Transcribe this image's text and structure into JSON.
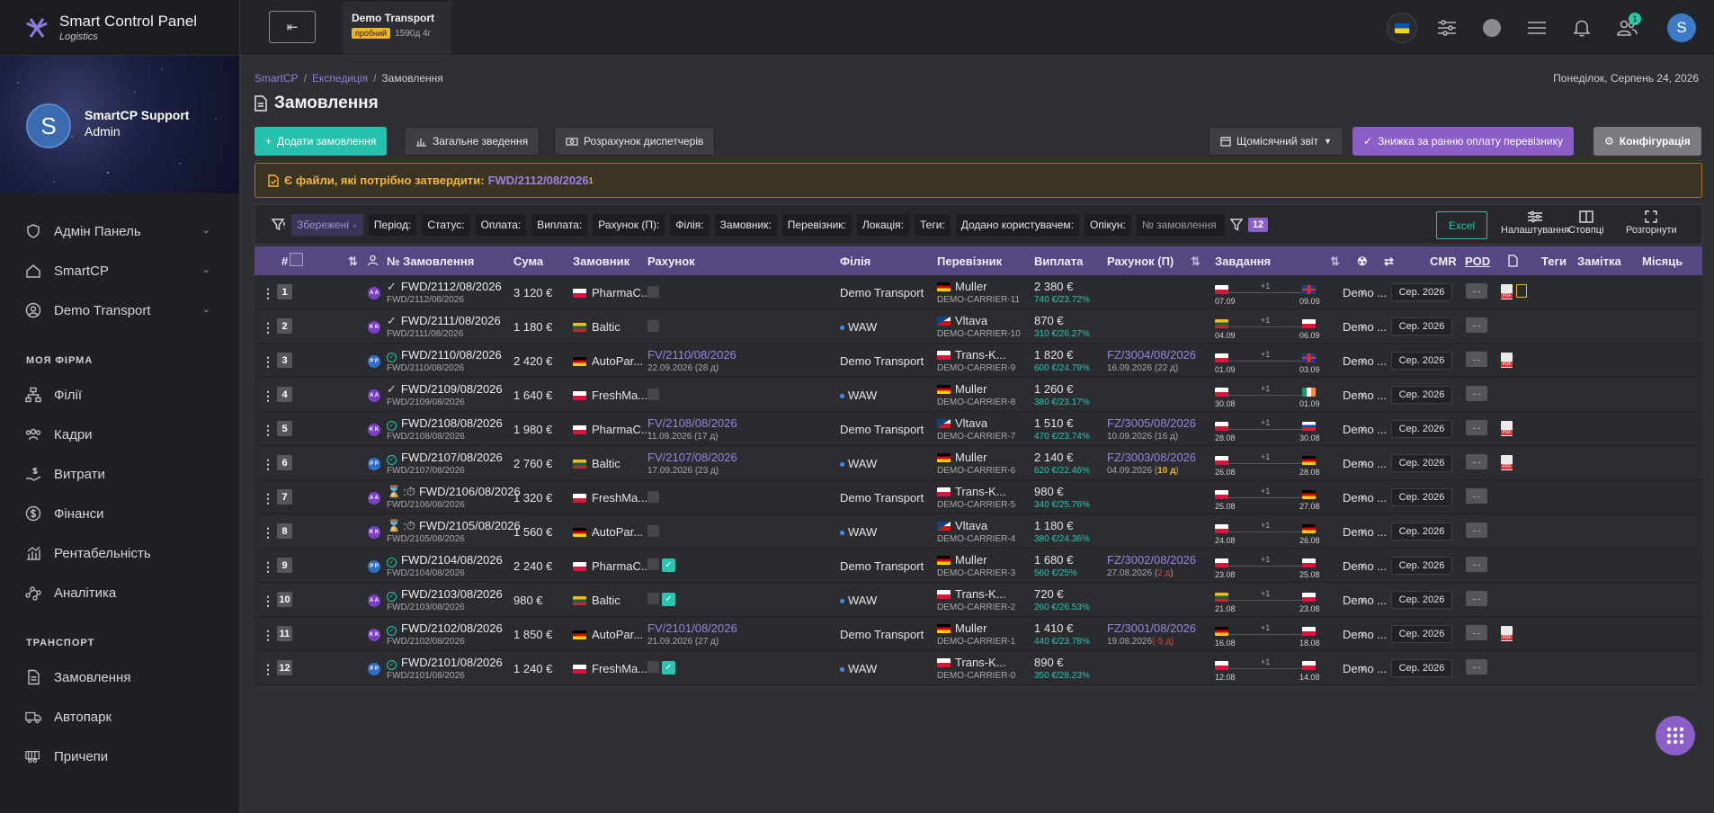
{
  "brand": {
    "title": "Smart Control Panel",
    "subtitle": "Logistics"
  },
  "profile": {
    "initial": "S",
    "name": "SmartCP Support",
    "role": "Admin"
  },
  "nav": {
    "top": [
      {
        "label": "Адмін Панель",
        "icon": "shield-icon"
      },
      {
        "label": "SmartCP",
        "icon": "home-icon"
      },
      {
        "label": "Demo Transport",
        "icon": "user-circle-icon"
      }
    ],
    "section1": "МОЯ ФІРМА",
    "firm": [
      {
        "label": "Філії",
        "icon": "network-icon"
      },
      {
        "label": "Кадри",
        "icon": "people-icon"
      },
      {
        "label": "Витрати",
        "icon": "expenses-icon"
      },
      {
        "label": "Фінанси",
        "icon": "dollar-icon"
      },
      {
        "label": "Рентабельність",
        "icon": "chart-icon"
      },
      {
        "label": "Аналітика",
        "icon": "analytics-icon"
      }
    ],
    "section2": "ТРАНСПОРТ",
    "transport": [
      {
        "label": "Замовлення",
        "icon": "orders-icon"
      },
      {
        "label": "Автопарк",
        "icon": "truck-icon"
      },
      {
        "label": "Причепи",
        "icon": "trailer-icon"
      }
    ]
  },
  "topbar": {
    "company": "Demo Transport",
    "trial": "пробний",
    "days": "1590д 4г",
    "notif_count": "1",
    "user_initial": "S"
  },
  "breadcrumb": {
    "root": "SmartCP",
    "parent": "Експедиція",
    "current": "Замовлення"
  },
  "date": "Понеділок, Серпень 24, 2026",
  "page_title": "Замовлення",
  "buttons": {
    "add": "Додати замовлення",
    "summary": "Загальне зведення",
    "dispatch": "Розрахунок диспетчерів",
    "monthly": "Щомісячний звіт",
    "discount": "Знижка за ранню оплату перевізнику",
    "config": "Конфігурація"
  },
  "alert": {
    "text": "Є файли, які потрібно затвердити:",
    "link": "FWD/2112/08/2026",
    "count": "1"
  },
  "filters": {
    "saved": "Збережені",
    "chips": [
      "Період:",
      "Статус:",
      "Оплата:",
      "Виплата:",
      "Рахунок (П):",
      "Філія:",
      "Замовник:",
      "Перевізник:",
      "Локація:",
      "Теги:",
      "Додано користувачем:",
      "Опікун:"
    ],
    "search_placeholder": "№ замовлення",
    "count": "12",
    "excel": "Excel",
    "settings": "Налаштування",
    "columns": "Стовпці",
    "expand": "Розгорнути"
  },
  "columns": {
    "num": "#",
    "order": "№ Замовлення",
    "sum": "Сума",
    "customer": "Замовник",
    "invoice": "Рахунок",
    "branch": "Філія",
    "carrier": "Перевізник",
    "payout": "Виплата",
    "invoice_p": "Рахунок (П)",
    "tasks": "Завдання",
    "cmr": "CMR",
    "pod": "POD",
    "tags": "Теги",
    "note": "Замітка",
    "month": "Місяць"
  },
  "rows": [
    {
      "n": "1",
      "av": "A A",
      "avc": "#7b3fc4",
      "st": "check",
      "ord": "FWD/2112/08/2026",
      "sum": "3 120 €",
      "cf": "pl",
      "cust": "PharmaC...",
      "inv": "",
      "invd": "",
      "inv_state": "sq",
      "branch": "Demo Transport",
      "bdot": false,
      "crf": "de",
      "carr": "Muller",
      "crs": "DEMO-CARRIER-11",
      "pay": "2 380 €",
      "paym": "740 €/23.72%",
      "invp": "",
      "invpd": "",
      "invpx": "",
      "invpxc": "",
      "f1": "pl",
      "d1": "07.09",
      "f2": "gb",
      "d2": "09.09",
      "pdf": true,
      "doc": true,
      "note": "Demo ...",
      "month": "Сер. 2026"
    },
    {
      "n": "2",
      "av": "K K",
      "avc": "#7b3fc4",
      "st": "check",
      "ord": "FWD/2111/08/2026",
      "sum": "1 180 €",
      "cf": "lt",
      "cust": "Baltic",
      "inv": "",
      "invd": "",
      "inv_state": "sq",
      "branch": "WAW",
      "bdot": true,
      "crf": "cz",
      "carr": "Vltava",
      "crs": "DEMO-CARRIER-10",
      "pay": "870 €",
      "paym": "310 €/26.27%",
      "invp": "",
      "invpd": "",
      "invpx": "",
      "invpxc": "",
      "f1": "lt",
      "d1": "04.09",
      "f2": "pl",
      "d2": "06.09",
      "pdf": false,
      "doc": false,
      "note": "Demo ...",
      "month": "Сер. 2026"
    },
    {
      "n": "3",
      "av": "P P",
      "avc": "#2f6fc7",
      "st": "circle",
      "ord": "FWD/2110/08/2026",
      "sum": "2 420 €",
      "cf": "de",
      "cust": "AutoPar...",
      "inv": "FV/2110/08/2026",
      "invd": "22.09.2026 (28 д)",
      "inv_state": "",
      "branch": "Demo Transport",
      "bdot": false,
      "crf": "pl",
      "carr": "Trans-K...",
      "crs": "DEMO-CARRIER-9",
      "pay": "1 820 €",
      "paym": "600 €/24.79%",
      "invp": "FZ/3004/08/2026",
      "invpd": "16.09.2026 (22 д)",
      "invpx": "",
      "invpxc": "",
      "f1": "pl",
      "d1": "01.09",
      "f2": "gb",
      "d2": "03.09",
      "pdf": true,
      "doc": false,
      "note": "Demo ...",
      "month": "Сер. 2026"
    },
    {
      "n": "4",
      "av": "A A",
      "avc": "#7b3fc4",
      "st": "check",
      "ord": "FWD/2109/08/2026",
      "sum": "1 640 €",
      "cf": "pl",
      "cust": "FreshMa...",
      "inv": "",
      "invd": "",
      "inv_state": "sq",
      "branch": "WAW",
      "bdot": true,
      "crf": "de",
      "carr": "Muller",
      "crs": "DEMO-CARRIER-8",
      "pay": "1 260 €",
      "paym": "380 €/23.17%",
      "invp": "",
      "invpd": "",
      "invpx": "",
      "invpxc": "",
      "f1": "pl",
      "d1": "30.08",
      "f2": "ie",
      "d2": "01.09",
      "pdf": false,
      "doc": false,
      "note": "Demo ...",
      "month": "Сер. 2026"
    },
    {
      "n": "5",
      "av": "K K",
      "avc": "#7b3fc4",
      "st": "circle",
      "ord": "FWD/2108/08/2026",
      "sum": "1 980 €",
      "cf": "pl",
      "cust": "PharmaC...",
      "inv": "FV/2108/08/2026",
      "invd": "11.09.2026 (17 д)",
      "inv_state": "",
      "branch": "Demo Transport",
      "bdot": false,
      "crf": "cz",
      "carr": "Vltava",
      "crs": "DEMO-CARRIER-7",
      "pay": "1 510 €",
      "paym": "470 €/23.74%",
      "invp": "FZ/3005/08/2026",
      "invpd": "10.09.2026 (16 д)",
      "invpx": "",
      "invpxc": "",
      "f1": "pl",
      "d1": "28.08",
      "f2": "sk",
      "d2": "30.08",
      "pdf": true,
      "doc": false,
      "note": "Demo ...",
      "month": "Сер. 2026"
    },
    {
      "n": "6",
      "av": "P P",
      "avc": "#2f6fc7",
      "st": "circle",
      "ord": "FWD/2107/08/2026",
      "sum": "2 760 €",
      "cf": "lt",
      "cust": "Baltic",
      "inv": "FV/2107/08/2026",
      "invd": "17.09.2026 (23 д)",
      "inv_state": "",
      "branch": "WAW",
      "bdot": true,
      "crf": "de",
      "carr": "Muller",
      "crs": "DEMO-CARRIER-6",
      "pay": "2 140 €",
      "paym": "620 €/22.46%",
      "invp": "FZ/3003/08/2026",
      "invpd": "04.09.2026 (",
      "invpx": "10 д",
      "invpxc": "#f0b429",
      "f1": "pl",
      "d1": "26.08",
      "f2": "de",
      "d2": "28.08",
      "pdf": true,
      "doc": false,
      "note": "Demo ...",
      "month": "Сер. 2026"
    },
    {
      "n": "7",
      "av": "A A",
      "avc": "#7b3fc4",
      "st": "hourglass",
      "ord": "FWD/2106/08/2026",
      "sum": "1 320 €",
      "cf": "pl",
      "cust": "FreshMa...",
      "inv": "",
      "invd": "",
      "inv_state": "sq",
      "branch": "Demo Transport",
      "bdot": false,
      "crf": "pl",
      "carr": "Trans-K...",
      "crs": "DEMO-CARRIER-5",
      "pay": "980 €",
      "paym": "340 €/25.76%",
      "invp": "",
      "invpd": "",
      "invpx": "",
      "invpxc": "",
      "f1": "pl",
      "d1": "25.08",
      "f2": "de",
      "d2": "27.08",
      "pdf": false,
      "doc": false,
      "note": "Demo ...",
      "month": "Сер. 2026"
    },
    {
      "n": "8",
      "av": "K K",
      "avc": "#7b3fc4",
      "st": "hourglass",
      "ord": "FWD/2105/08/2026",
      "sum": "1 560 €",
      "cf": "de",
      "cust": "AutoPar...",
      "inv": "",
      "invd": "",
      "inv_state": "sq",
      "branch": "WAW",
      "bdot": true,
      "crf": "cz",
      "carr": "Vltava",
      "crs": "DEMO-CARRIER-4",
      "pay": "1 180 €",
      "paym": "380 €/24.36%",
      "invp": "",
      "invpd": "",
      "invpx": "",
      "invpxc": "",
      "f1": "pl",
      "d1": "24.08",
      "f2": "de",
      "d2": "26.08",
      "pdf": false,
      "doc": false,
      "note": "Demo ...",
      "month": "Сер. 2026"
    },
    {
      "n": "9",
      "av": "P P",
      "avc": "#2f6fc7",
      "st": "circle",
      "ord": "FWD/2104/08/2026",
      "sum": "2 240 €",
      "cf": "pl",
      "cust": "PharmaC...",
      "inv": "",
      "invd": "",
      "inv_state": "chk",
      "branch": "Demo Transport",
      "bdot": false,
      "crf": "de",
      "carr": "Muller",
      "crs": "DEMO-CARRIER-3",
      "pay": "1 680 €",
      "paym": "560 €/25%",
      "invp": "FZ/3002/08/2026",
      "invpd": "27.08.2026 (",
      "invpx": "2 д",
      "invpxc": "#e0443a",
      "f1": "pl",
      "d1": "23.08",
      "f2": "pl",
      "d2": "25.08",
      "pdf": false,
      "doc": false,
      "note": "Demo ...",
      "month": "Сер. 2026"
    },
    {
      "n": "10",
      "av": "A A",
      "avc": "#7b3fc4",
      "st": "circle",
      "ord": "FWD/2103/08/2026",
      "sum": "980 €",
      "cf": "lt",
      "cust": "Baltic",
      "inv": "",
      "invd": "",
      "inv_state": "chk",
      "branch": "WAW",
      "bdot": true,
      "crf": "pl",
      "carr": "Trans-K...",
      "crs": "DEMO-CARRIER-2",
      "pay": "720 €",
      "paym": "260 €/26.53%",
      "invp": "",
      "invpd": "",
      "invpx": "",
      "invpxc": "",
      "f1": "lt",
      "d1": "21.08",
      "f2": "pl",
      "d2": "23.08",
      "pdf": false,
      "doc": false,
      "note": "Demo ...",
      "month": "Сер. 2026"
    },
    {
      "n": "11",
      "av": "K K",
      "avc": "#7b3fc4",
      "st": "circle",
      "ord": "FWD/2102/08/2026",
      "sum": "1 850 €",
      "cf": "de",
      "cust": "AutoPar...",
      "inv": "FV/2101/08/2026",
      "invd": "21.09.2026 (27 д)",
      "inv_state": "",
      "branch": "Demo Transport",
      "bdot": false,
      "crf": "de",
      "carr": "Muller",
      "crs": "DEMO-CARRIER-1",
      "pay": "1 410 €",
      "paym": "440 €/23.78%",
      "invp": "FZ/3001/08/2026",
      "invpd": "19.08.2026",
      "invpx": "(-5 д)",
      "invpxc": "#e0443a",
      "f1": "de",
      "d1": "16.08",
      "f2": "pl",
      "d2": "18.08",
      "pdf": true,
      "doc": false,
      "note": "Demo ...",
      "month": "Сер. 2026"
    },
    {
      "n": "12",
      "av": "P P",
      "avc": "#2f6fc7",
      "st": "circle",
      "ord": "FWD/2101/08/2026",
      "sum": "1 240 €",
      "cf": "pl",
      "cust": "FreshMa...",
      "inv": "",
      "invd": "",
      "inv_state": "chk",
      "branch": "WAW",
      "bdot": true,
      "crf": "pl",
      "carr": "Trans-K...",
      "crs": "DEMO-CARRIER-0",
      "pay": "890 €",
      "paym": "350 €/28.23%",
      "invp": "",
      "invpd": "",
      "invpx": "",
      "invpxc": "",
      "f1": "pl",
      "d1": "12.08",
      "f2": "pl",
      "d2": "14.08",
      "pdf": false,
      "doc": false,
      "note": "Demo ...",
      "month": "Сер. 2026"
    }
  ],
  "pod_text": "- -",
  "x_mark": "×"
}
